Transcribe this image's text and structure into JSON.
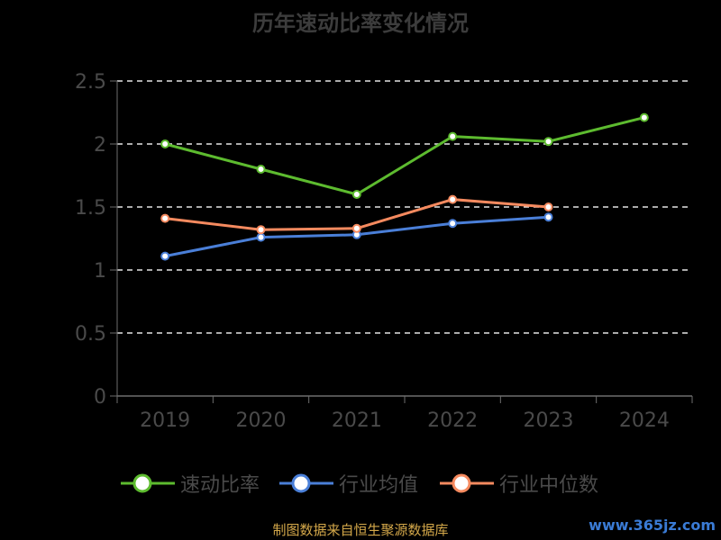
{
  "chart_data": {
    "type": "line",
    "title": "历年速动比率变化情况",
    "categories": [
      "2019",
      "2020",
      "2021",
      "2022",
      "2023",
      "2024"
    ],
    "y_ticks": [
      "0",
      "0.5",
      "1",
      "1.5",
      "2",
      "2.5"
    ],
    "ylim": [
      0,
      2.5
    ],
    "grid": "dashed horizontal",
    "legend_position": "bottom",
    "series": [
      {
        "name": "速动比率",
        "color": "#5dbb2f",
        "values": [
          2.0,
          1.8,
          1.6,
          2.06,
          2.02,
          2.21
        ]
      },
      {
        "name": "行业均值",
        "color": "#4a7fd8",
        "values": [
          1.11,
          1.26,
          1.28,
          1.37,
          1.42,
          null
        ]
      },
      {
        "name": "行业中位数",
        "color": "#f58a5f",
        "values": [
          1.41,
          1.32,
          1.33,
          1.56,
          1.5,
          null
        ]
      }
    ]
  },
  "footer": {
    "source": "制图数据来自恒生聚源数据库",
    "watermark": "www.365jz.com"
  }
}
